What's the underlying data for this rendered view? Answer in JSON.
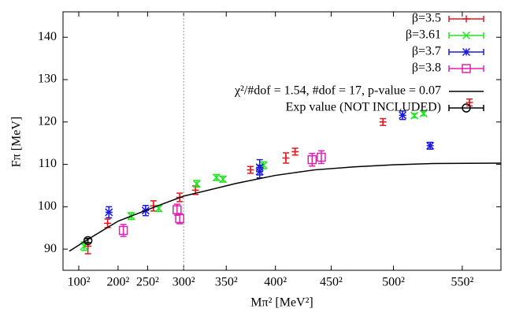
{
  "chart_data": {
    "type": "scatter",
    "x_label": "Mπ² [MeV²]",
    "y_label": "Fπ [MeV]",
    "xlim": [
      -2000,
      332000
    ],
    "ylim": [
      85,
      146
    ],
    "xticks": [
      {
        "value": 10000,
        "label": "100²"
      },
      {
        "value": 40000,
        "label": "200²"
      },
      {
        "value": 62500,
        "label": "250²"
      },
      {
        "value": 90000,
        "label": "300²"
      },
      {
        "value": 122500,
        "label": "350²"
      },
      {
        "value": 160000,
        "label": "400²"
      },
      {
        "value": 202500,
        "label": "450²"
      },
      {
        "value": 250000,
        "label": "500²"
      },
      {
        "value": 302500,
        "label": "550²"
      }
    ],
    "yticks": [
      90,
      100,
      110,
      120,
      130,
      140
    ],
    "vline": 90000,
    "legend": "upper right",
    "series": [
      {
        "name": "β=3.5",
        "color": "#e8161c",
        "marker": "plus",
        "x": [
          17000,
          32000,
          67000,
          87000,
          99000,
          141000,
          168000,
          175000,
          242000,
          308000
        ],
        "values": [
          90.7,
          96.1,
          100.2,
          102.2,
          103.9,
          108.7,
          111.5,
          113,
          120,
          124.6
        ],
        "errors": [
          1.8,
          1,
          1.2,
          1,
          1,
          0.8,
          1.2,
          0.8,
          0.8,
          0.8
        ]
      },
      {
        "name": "β=3.61",
        "color": "#22e622",
        "marker": "cross",
        "x": [
          14000,
          50000,
          71000,
          100000,
          115000,
          120000,
          151000,
          266000,
          273000
        ],
        "values": [
          90.7,
          97.8,
          99.6,
          105.4,
          106.9,
          106.5,
          109.8,
          121.5,
          122
        ],
        "errors": [
          1,
          0.8,
          0.7,
          0.8,
          0.7,
          0.7,
          0.8,
          0.5,
          0.5
        ]
      },
      {
        "name": "β=3.7",
        "color": "#1a1ae0",
        "marker": "star",
        "x": [
          33000,
          61000,
          148000,
          148000,
          257000,
          278000
        ],
        "values": [
          98.7,
          99.1,
          109.3,
          108.3,
          121.6,
          114.4
        ],
        "errors": [
          1.3,
          1.2,
          1.8,
          1.5,
          1,
          0.8
        ]
      },
      {
        "name": "β=3.8",
        "color": "#e020b0",
        "marker": "square",
        "x": [
          44000,
          85000,
          87000,
          188000,
          195000
        ],
        "values": [
          94.4,
          99.3,
          97.2,
          111.1,
          111.7
        ],
        "errors": [
          1.4,
          1.3,
          1.2,
          1.5,
          1.5
        ]
      },
      {
        "name": "χ²/#dof = 1.54, #dof = 17, p-value = 0.07",
        "color": "#000000",
        "style": "line",
        "x": [
          2800,
          17000,
          40000,
          70000,
          90000,
          130000,
          160000,
          190000,
          220000,
          250000,
          280000,
          332000
        ],
        "values": [
          89.5,
          92.3,
          96.6,
          100.2,
          102.5,
          105.5,
          107.4,
          108.7,
          109.4,
          109.9,
          110.2,
          110.3
        ]
      },
      {
        "name": "Exp value (NOT INCLUDED)",
        "color": "#000000",
        "marker": "circle",
        "x": [
          17000
        ],
        "values": [
          92
        ],
        "errors": [
          0.5
        ]
      }
    ]
  }
}
